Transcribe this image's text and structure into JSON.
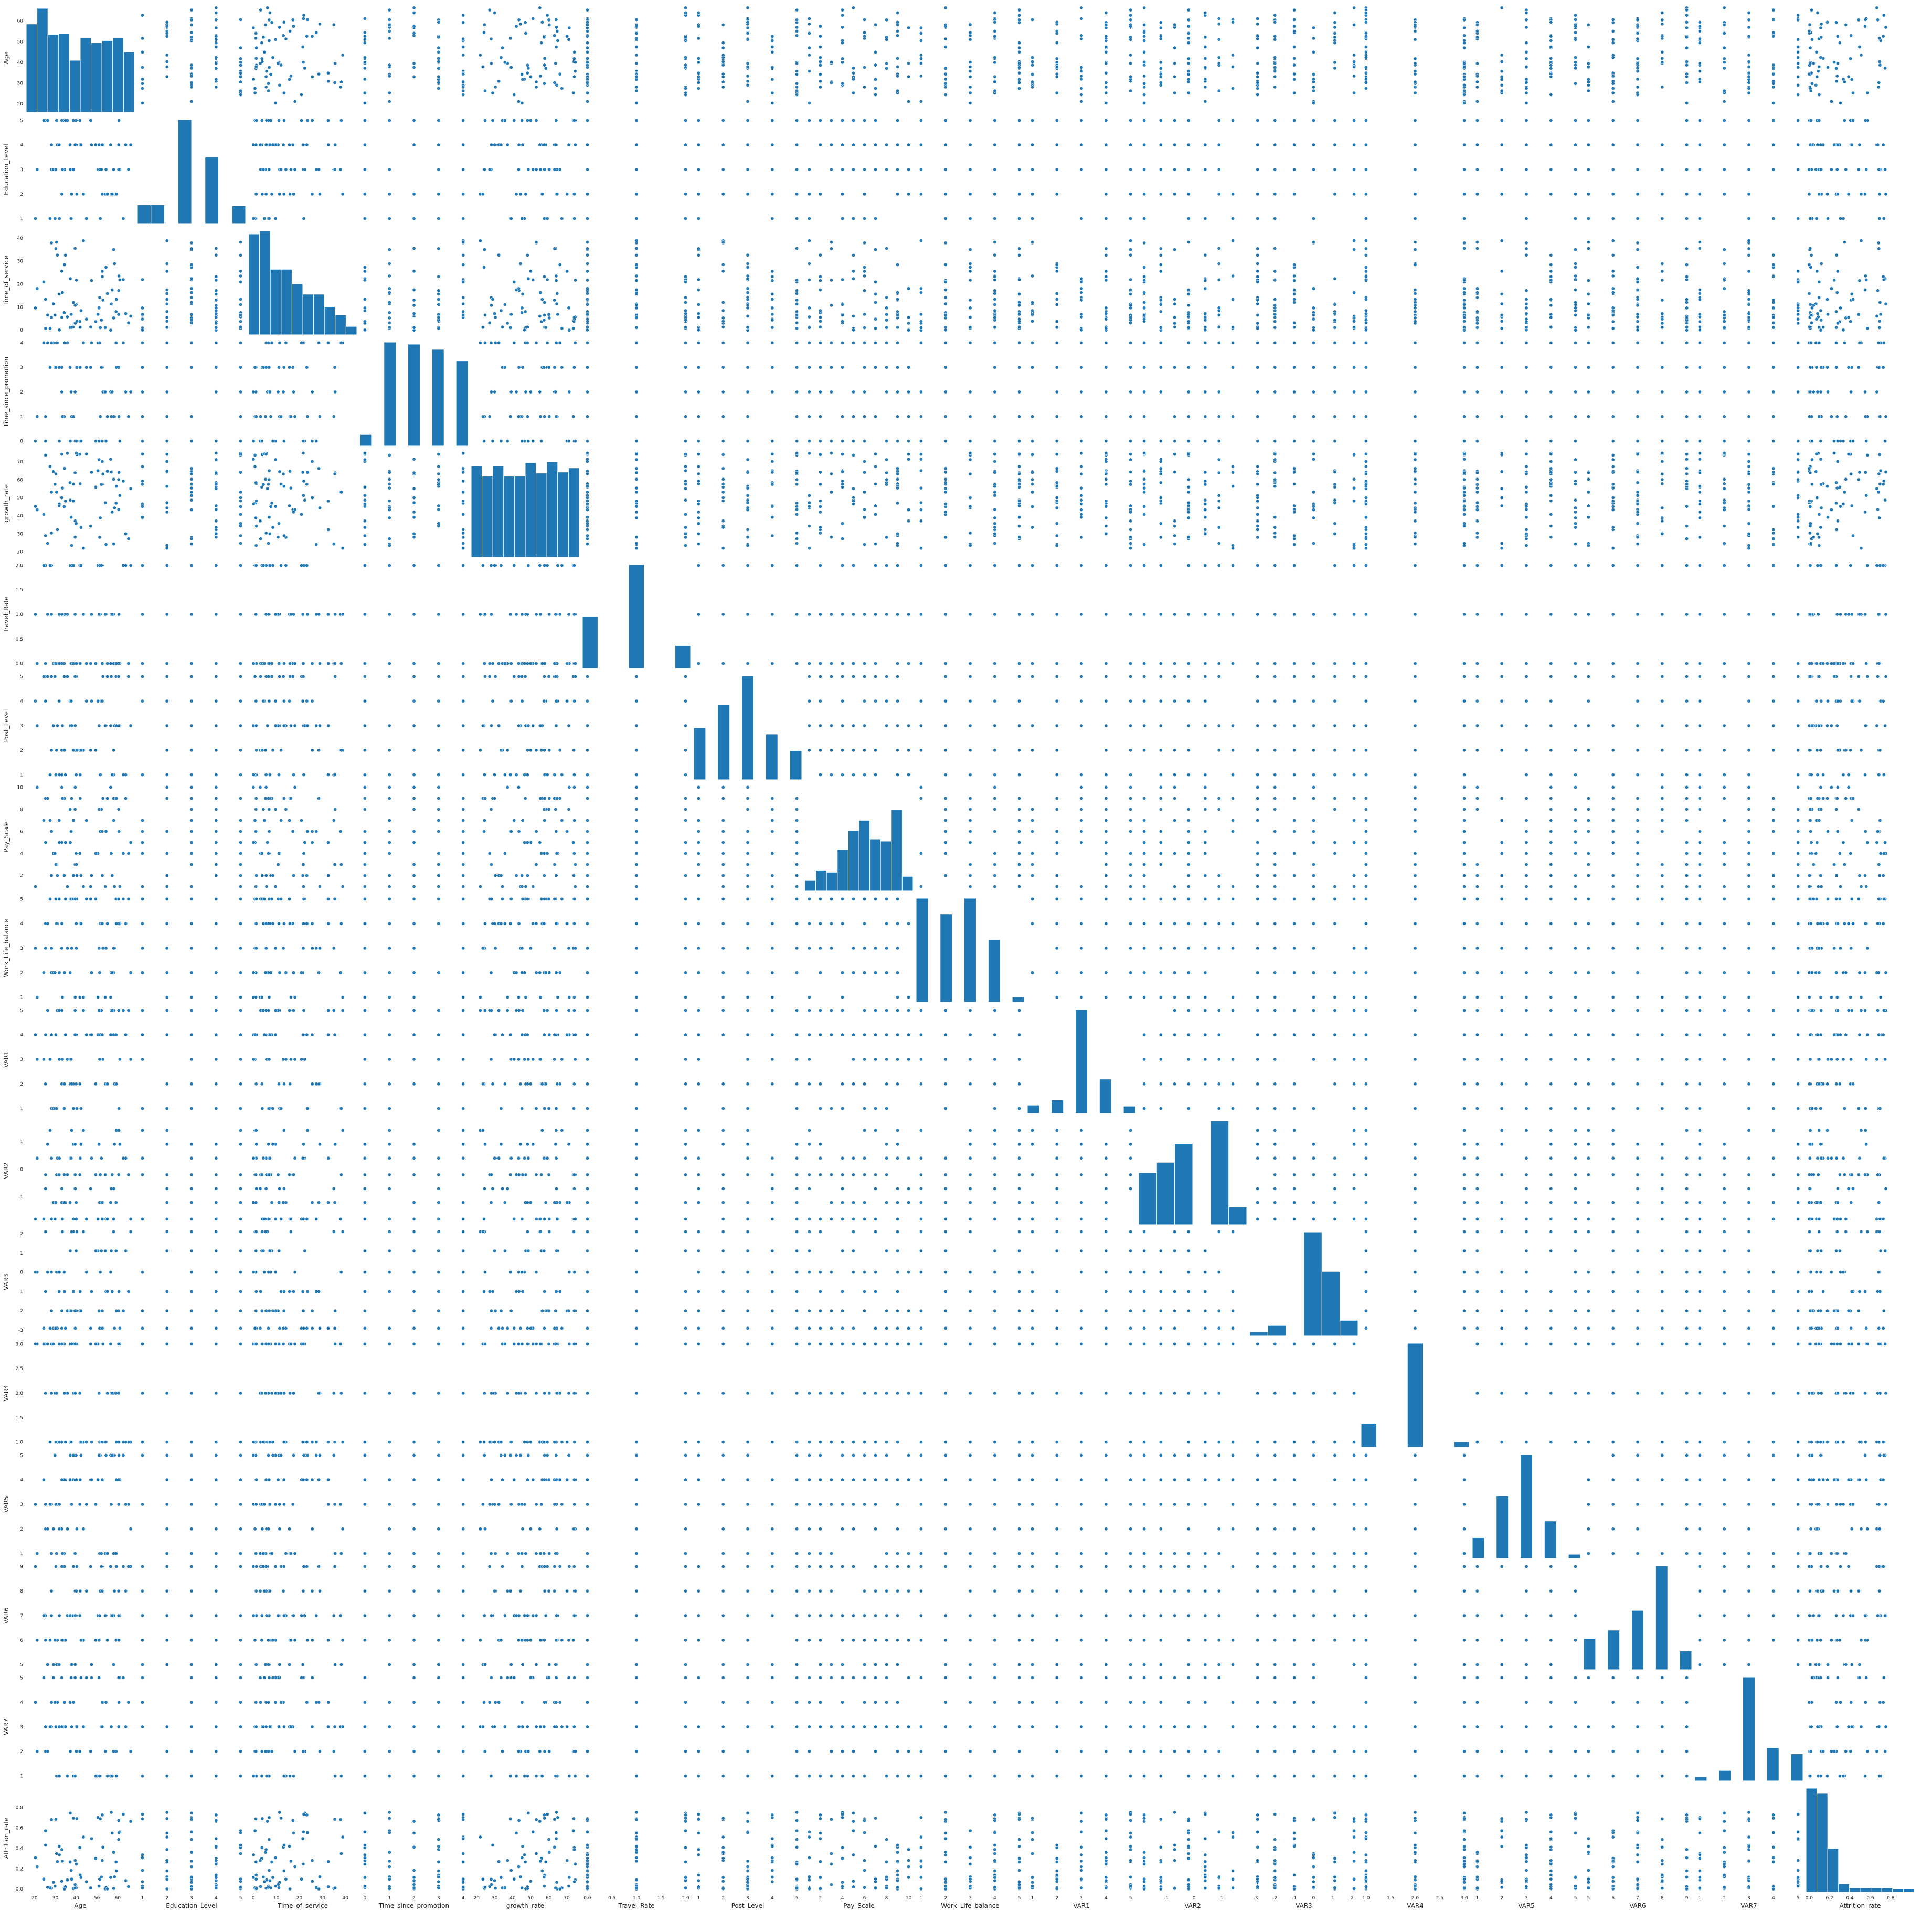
{
  "chart_data": {
    "type": "scatter",
    "title": "",
    "variables": [
      {
        "name": "Age",
        "ticks": [
          20,
          30,
          40,
          50,
          60
        ],
        "tick_labels": [
          "20",
          "30",
          "40",
          "50",
          "60"
        ],
        "range": [
          16,
          68
        ],
        "kind": "uniform"
      },
      {
        "name": "Education_Level",
        "ticks": [
          1,
          2,
          3,
          4,
          5
        ],
        "tick_labels": [
          "1",
          "2",
          "3",
          "4",
          "5"
        ],
        "range": [
          0.8,
          5.2
        ],
        "kind": "discrete",
        "levels": [
          1,
          2,
          3,
          4,
          5
        ]
      },
      {
        "name": "Time_of_service",
        "ticks": [
          0,
          10,
          20,
          30,
          40
        ],
        "tick_labels": [
          "0",
          "10",
          "20",
          "30",
          "40"
        ],
        "range": [
          -2,
          45
        ],
        "kind": "skewed"
      },
      {
        "name": "Time_since_promotion",
        "ticks": [
          0,
          1,
          2,
          3,
          4
        ],
        "tick_labels": [
          "0",
          "1",
          "2",
          "3",
          "4"
        ],
        "range": [
          -0.2,
          4.2
        ],
        "kind": "discrete",
        "levels": [
          0,
          1,
          2,
          3,
          4
        ]
      },
      {
        "name": "growth_rate",
        "ticks": [
          20,
          30,
          40,
          50,
          60,
          70
        ],
        "tick_labels": [
          "20",
          "30",
          "40",
          "50",
          "60",
          "70"
        ],
        "range": [
          17,
          77
        ],
        "kind": "uniform"
      },
      {
        "name": "Travel_Rate",
        "ticks": [
          0,
          0.5,
          1,
          1.5,
          2
        ],
        "tick_labels": [
          "0.0",
          "0.5",
          "1.0",
          "1.5",
          "2.0"
        ],
        "range": [
          -0.1,
          2.1
        ],
        "kind": "discrete",
        "levels": [
          0,
          1,
          2
        ]
      },
      {
        "name": "Post_Level",
        "ticks": [
          1,
          2,
          3,
          4,
          5
        ],
        "tick_labels": [
          "1",
          "2",
          "3",
          "4",
          "5"
        ],
        "range": [
          0.8,
          5.2
        ],
        "kind": "discrete",
        "levels": [
          1,
          2,
          3,
          4,
          5
        ]
      },
      {
        "name": "Pay_Scale",
        "ticks": [
          2,
          4,
          6,
          8,
          10
        ],
        "tick_labels": [
          "2",
          "4",
          "6",
          "8",
          "10"
        ],
        "range": [
          0.6,
          10.4
        ],
        "kind": "discrete",
        "levels": [
          1,
          2,
          3,
          4,
          5,
          6,
          7,
          8,
          9,
          10
        ]
      },
      {
        "name": "Work_Life_balance",
        "ticks": [
          1,
          2,
          3,
          4,
          5
        ],
        "tick_labels": [
          "1",
          "2",
          "3",
          "4",
          "5"
        ],
        "range": [
          0.8,
          5.2
        ],
        "kind": "discrete",
        "levels": [
          1,
          2,
          3,
          4,
          5
        ]
      },
      {
        "name": "VAR1",
        "ticks": [
          1,
          2,
          3,
          4,
          5
        ],
        "tick_labels": [
          "1",
          "2",
          "3",
          "4",
          "5"
        ],
        "range": [
          0.8,
          5.2
        ],
        "kind": "discrete",
        "levels": [
          1,
          2,
          3,
          4,
          5
        ]
      },
      {
        "name": "VAR2",
        "ticks": [
          -1,
          0,
          1
        ],
        "tick_labels": [
          "-1",
          "0",
          "1"
        ],
        "range": [
          -2.0,
          1.9
        ],
        "kind": "discrete",
        "levels": [
          -1.8,
          -1.2,
          -0.7,
          -0.2,
          0.4,
          0.9,
          1.4
        ]
      },
      {
        "name": "VAR3",
        "ticks": [
          -3,
          -2,
          -1,
          0,
          1,
          2
        ],
        "tick_labels": [
          "-3",
          "-2",
          "-1",
          "0",
          "1",
          "2"
        ],
        "range": [
          -3.3,
          2.3
        ],
        "kind": "discrete",
        "levels": [
          -2.9,
          -2.0,
          -1.0,
          0.0,
          1.1,
          2.1
        ]
      },
      {
        "name": "VAR4",
        "ticks": [
          1,
          1.5,
          2,
          2.5,
          3
        ],
        "tick_labels": [
          "1.0",
          "1.5",
          "2.0",
          "2.5",
          "3.0"
        ],
        "range": [
          0.9,
          3.1
        ],
        "kind": "discrete",
        "levels": [
          1,
          2,
          3
        ]
      },
      {
        "name": "VAR5",
        "ticks": [
          1,
          2,
          3,
          4,
          5
        ],
        "tick_labels": [
          "1",
          "2",
          "3",
          "4",
          "5"
        ],
        "range": [
          0.8,
          5.2
        ],
        "kind": "discrete",
        "levels": [
          1,
          2,
          3,
          4,
          5
        ]
      },
      {
        "name": "VAR6",
        "ticks": [
          5,
          6,
          7,
          8,
          9
        ],
        "tick_labels": [
          "5",
          "6",
          "7",
          "8",
          "9"
        ],
        "range": [
          4.8,
          9.2
        ],
        "kind": "discrete",
        "levels": [
          5,
          6,
          7,
          8,
          9
        ]
      },
      {
        "name": "VAR7",
        "ticks": [
          1,
          2,
          3,
          4,
          5
        ],
        "tick_labels": [
          "1",
          "2",
          "3",
          "4",
          "5"
        ],
        "range": [
          0.8,
          5.2
        ],
        "kind": "discrete",
        "levels": [
          1,
          2,
          3,
          4,
          5
        ]
      },
      {
        "name": "Attrition_rate",
        "ticks": [
          0,
          0.2,
          0.4,
          0.6,
          0.8
        ],
        "tick_labels": [
          "0.0",
          "0.2",
          "0.4",
          "0.6",
          "0.8"
        ],
        "range": [
          -0.03,
          1.03
        ],
        "kind": "skewed"
      }
    ],
    "diagonal_histograms": [
      [
        0.85,
        1.0,
        0.75,
        0.76,
        0.5,
        0.72,
        0.67,
        0.69,
        0.72,
        0.58
      ],
      [
        0.18,
        0.18,
        0.0,
        1.0,
        0.0,
        0.64,
        0.0,
        0.17
      ],
      [
        0.97,
        1.0,
        0.63,
        0.63,
        0.49,
        0.39,
        0.39,
        0.27,
        0.19,
        0.08
      ],
      [
        0.11,
        0.0,
        1.0,
        0.0,
        0.98,
        0.0,
        0.93,
        0.0,
        0.82
      ],
      [
        0.88,
        0.78,
        0.88,
        0.78,
        0.78,
        0.91,
        0.81,
        0.92,
        0.82,
        0.86
      ],
      [
        0.5,
        0.0,
        0.0,
        1.0,
        0.0,
        0.0,
        0.22
      ],
      [
        0.5,
        0.0,
        0.72,
        0.0,
        1.0,
        0.0,
        0.44,
        0.0,
        0.28
      ],
      [
        0.1,
        0.2,
        0.18,
        0.4,
        0.58,
        0.68,
        0.5,
        0.48,
        0.78,
        0.14
      ],
      [
        1.0,
        0.0,
        0.85,
        0.0,
        1.0,
        0.0,
        0.6,
        0.0,
        0.05
      ],
      [
        0.08,
        0.0,
        0.13,
        0.0,
        1.0,
        0.0,
        0.33,
        0.0,
        0.07
      ],
      [
        0.5,
        0.6,
        0.78,
        0.0,
        1.0,
        0.17
      ],
      [
        0.04,
        0.1,
        0.0,
        1.0,
        0.62,
        0.15
      ],
      [
        0.23,
        0.0,
        0.0,
        1.0,
        0.0,
        0.0,
        0.05
      ],
      [
        0.2,
        0.0,
        0.6,
        0.0,
        1.0,
        0.0,
        0.36,
        0.0,
        0.04
      ],
      [
        0.3,
        0.0,
        0.38,
        0.0,
        0.57,
        0.0,
        1.0,
        0.0,
        0.18
      ],
      [
        0.04,
        0.0,
        0.1,
        0.0,
        1.0,
        0.0,
        0.32,
        0.0,
        0.26
      ],
      [
        1.0,
        0.95,
        0.42,
        0.08,
        0.04,
        0.04,
        0.04,
        0.04,
        0.03,
        0.03
      ]
    ],
    "grid": false,
    "legend": "none"
  }
}
